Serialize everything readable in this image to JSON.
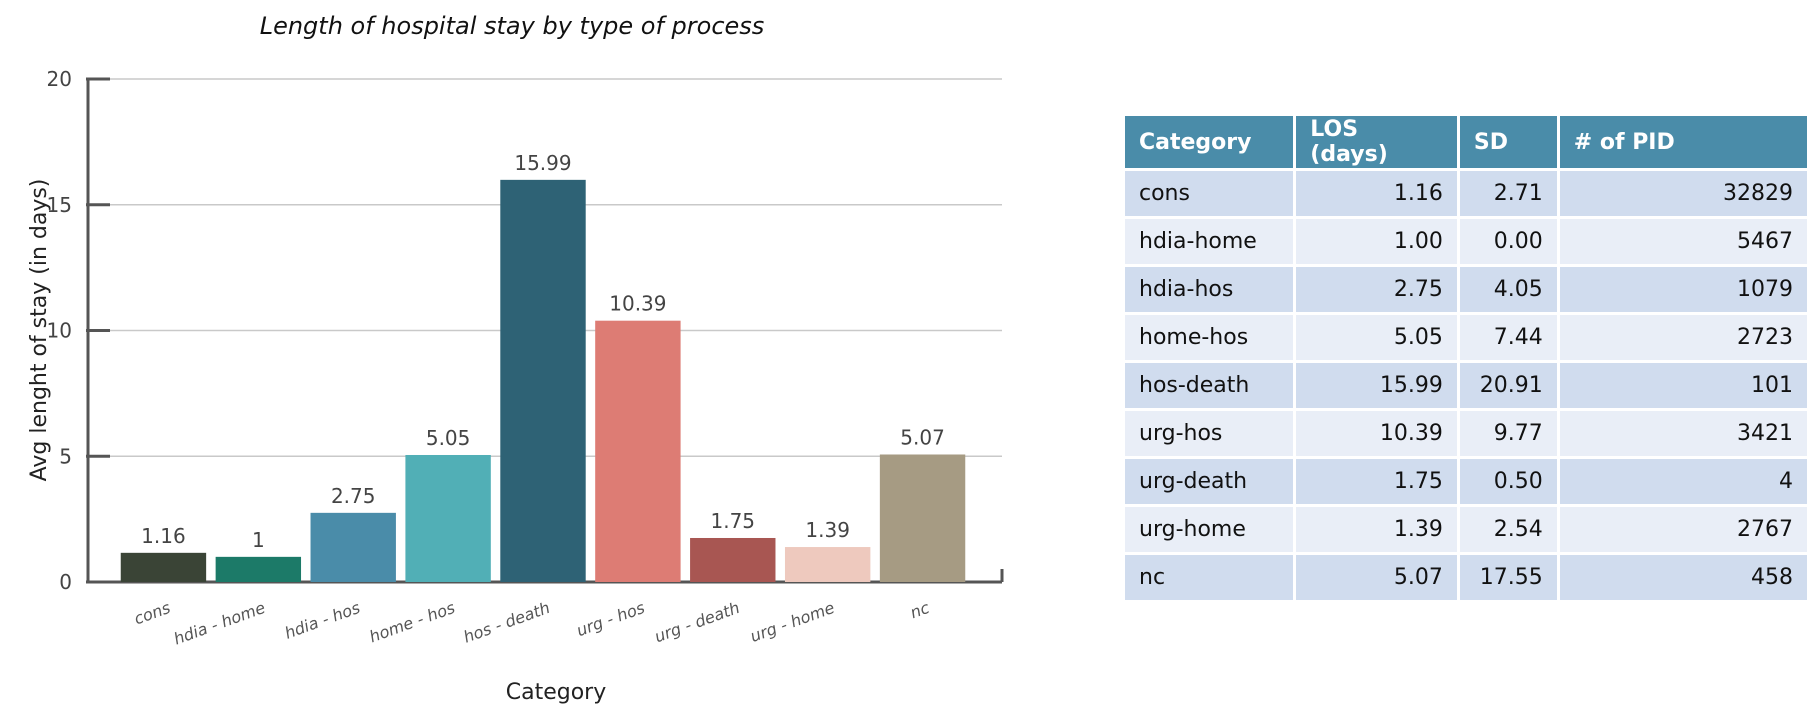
{
  "chart_data": {
    "type": "bar",
    "title": "Length of hospital stay by type of process",
    "xlabel": "Category",
    "ylabel": "Avg lenght of stay (in days)",
    "ylim": [
      0,
      20
    ],
    "yticks": [
      "0",
      "5",
      "10",
      "15",
      "20"
    ],
    "grid": true,
    "categories": [
      "cons",
      "hdia - home",
      "hdia - hos",
      "home - hos",
      "hos - death",
      "urg - hos",
      "urg - death",
      "urg - home",
      "nc"
    ],
    "values": [
      1.16,
      1,
      2.75,
      5.05,
      15.99,
      10.39,
      1.75,
      1.39,
      5.07
    ],
    "value_labels": [
      "1.16",
      "1",
      "2.75",
      "5.05",
      "15.99",
      "10.39",
      "1.75",
      "1.39",
      "5.07"
    ],
    "colors": [
      "#3a4436",
      "#1c7a68",
      "#4a8ca9",
      "#51afb6",
      "#2e6275",
      "#dd7c74",
      "#a85652",
      "#eec9be",
      "#a69b83"
    ]
  },
  "table": {
    "headers": [
      "Category",
      "LOS (days)",
      "SD",
      "# of PID"
    ],
    "rows": [
      [
        "cons",
        "1.16",
        "2.71",
        "32829"
      ],
      [
        "hdia-home",
        "1.00",
        "0.00",
        "5467"
      ],
      [
        "hdia-hos",
        "2.75",
        "4.05",
        "1079"
      ],
      [
        "home-hos",
        "5.05",
        "7.44",
        "2723"
      ],
      [
        "hos-death",
        "15.99",
        "20.91",
        "101"
      ],
      [
        "urg-hos",
        "10.39",
        "9.77",
        "3421"
      ],
      [
        "urg-death",
        "1.75",
        "0.50",
        "4"
      ],
      [
        "urg-home",
        "1.39",
        "2.54",
        "2767"
      ],
      [
        "nc",
        "5.07",
        "17.55",
        "458"
      ]
    ]
  }
}
